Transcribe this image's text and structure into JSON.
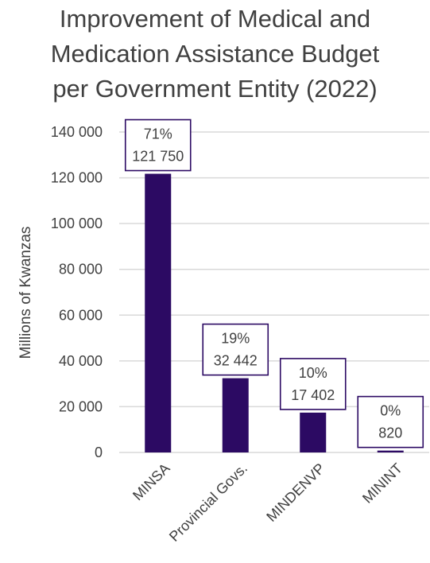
{
  "chart_data": {
    "type": "bar",
    "title_lines": [
      "Improvement of Medical and",
      "Medication Assistance Budget",
      "per Government Entity (2022)"
    ],
    "ylabel": "Millions of Kwanzas",
    "categories": [
      "MINSA",
      "Provincial Govs.",
      "MINDENVP",
      "MININT"
    ],
    "values": [
      121750,
      32442,
      17402,
      820
    ],
    "data_labels": [
      {
        "pct": "71%",
        "value": "121 750"
      },
      {
        "pct": "19%",
        "value": "32 442"
      },
      {
        "pct": "10%",
        "value": "17 402"
      },
      {
        "pct": "0%",
        "value": "820"
      }
    ],
    "yticks": [
      0,
      20000,
      40000,
      60000,
      80000,
      100000,
      120000,
      140000
    ],
    "ytick_labels": [
      "0",
      "20 000",
      "40 000",
      "60 000",
      "80 000",
      "100 000",
      "120 000",
      "140 000"
    ],
    "ylim": [
      0,
      140000
    ],
    "grid": true,
    "colors": {
      "bar": "#2c0a63",
      "label_border": "#2c0a63",
      "grid": "#d9d9d9",
      "text": "#404040"
    }
  }
}
